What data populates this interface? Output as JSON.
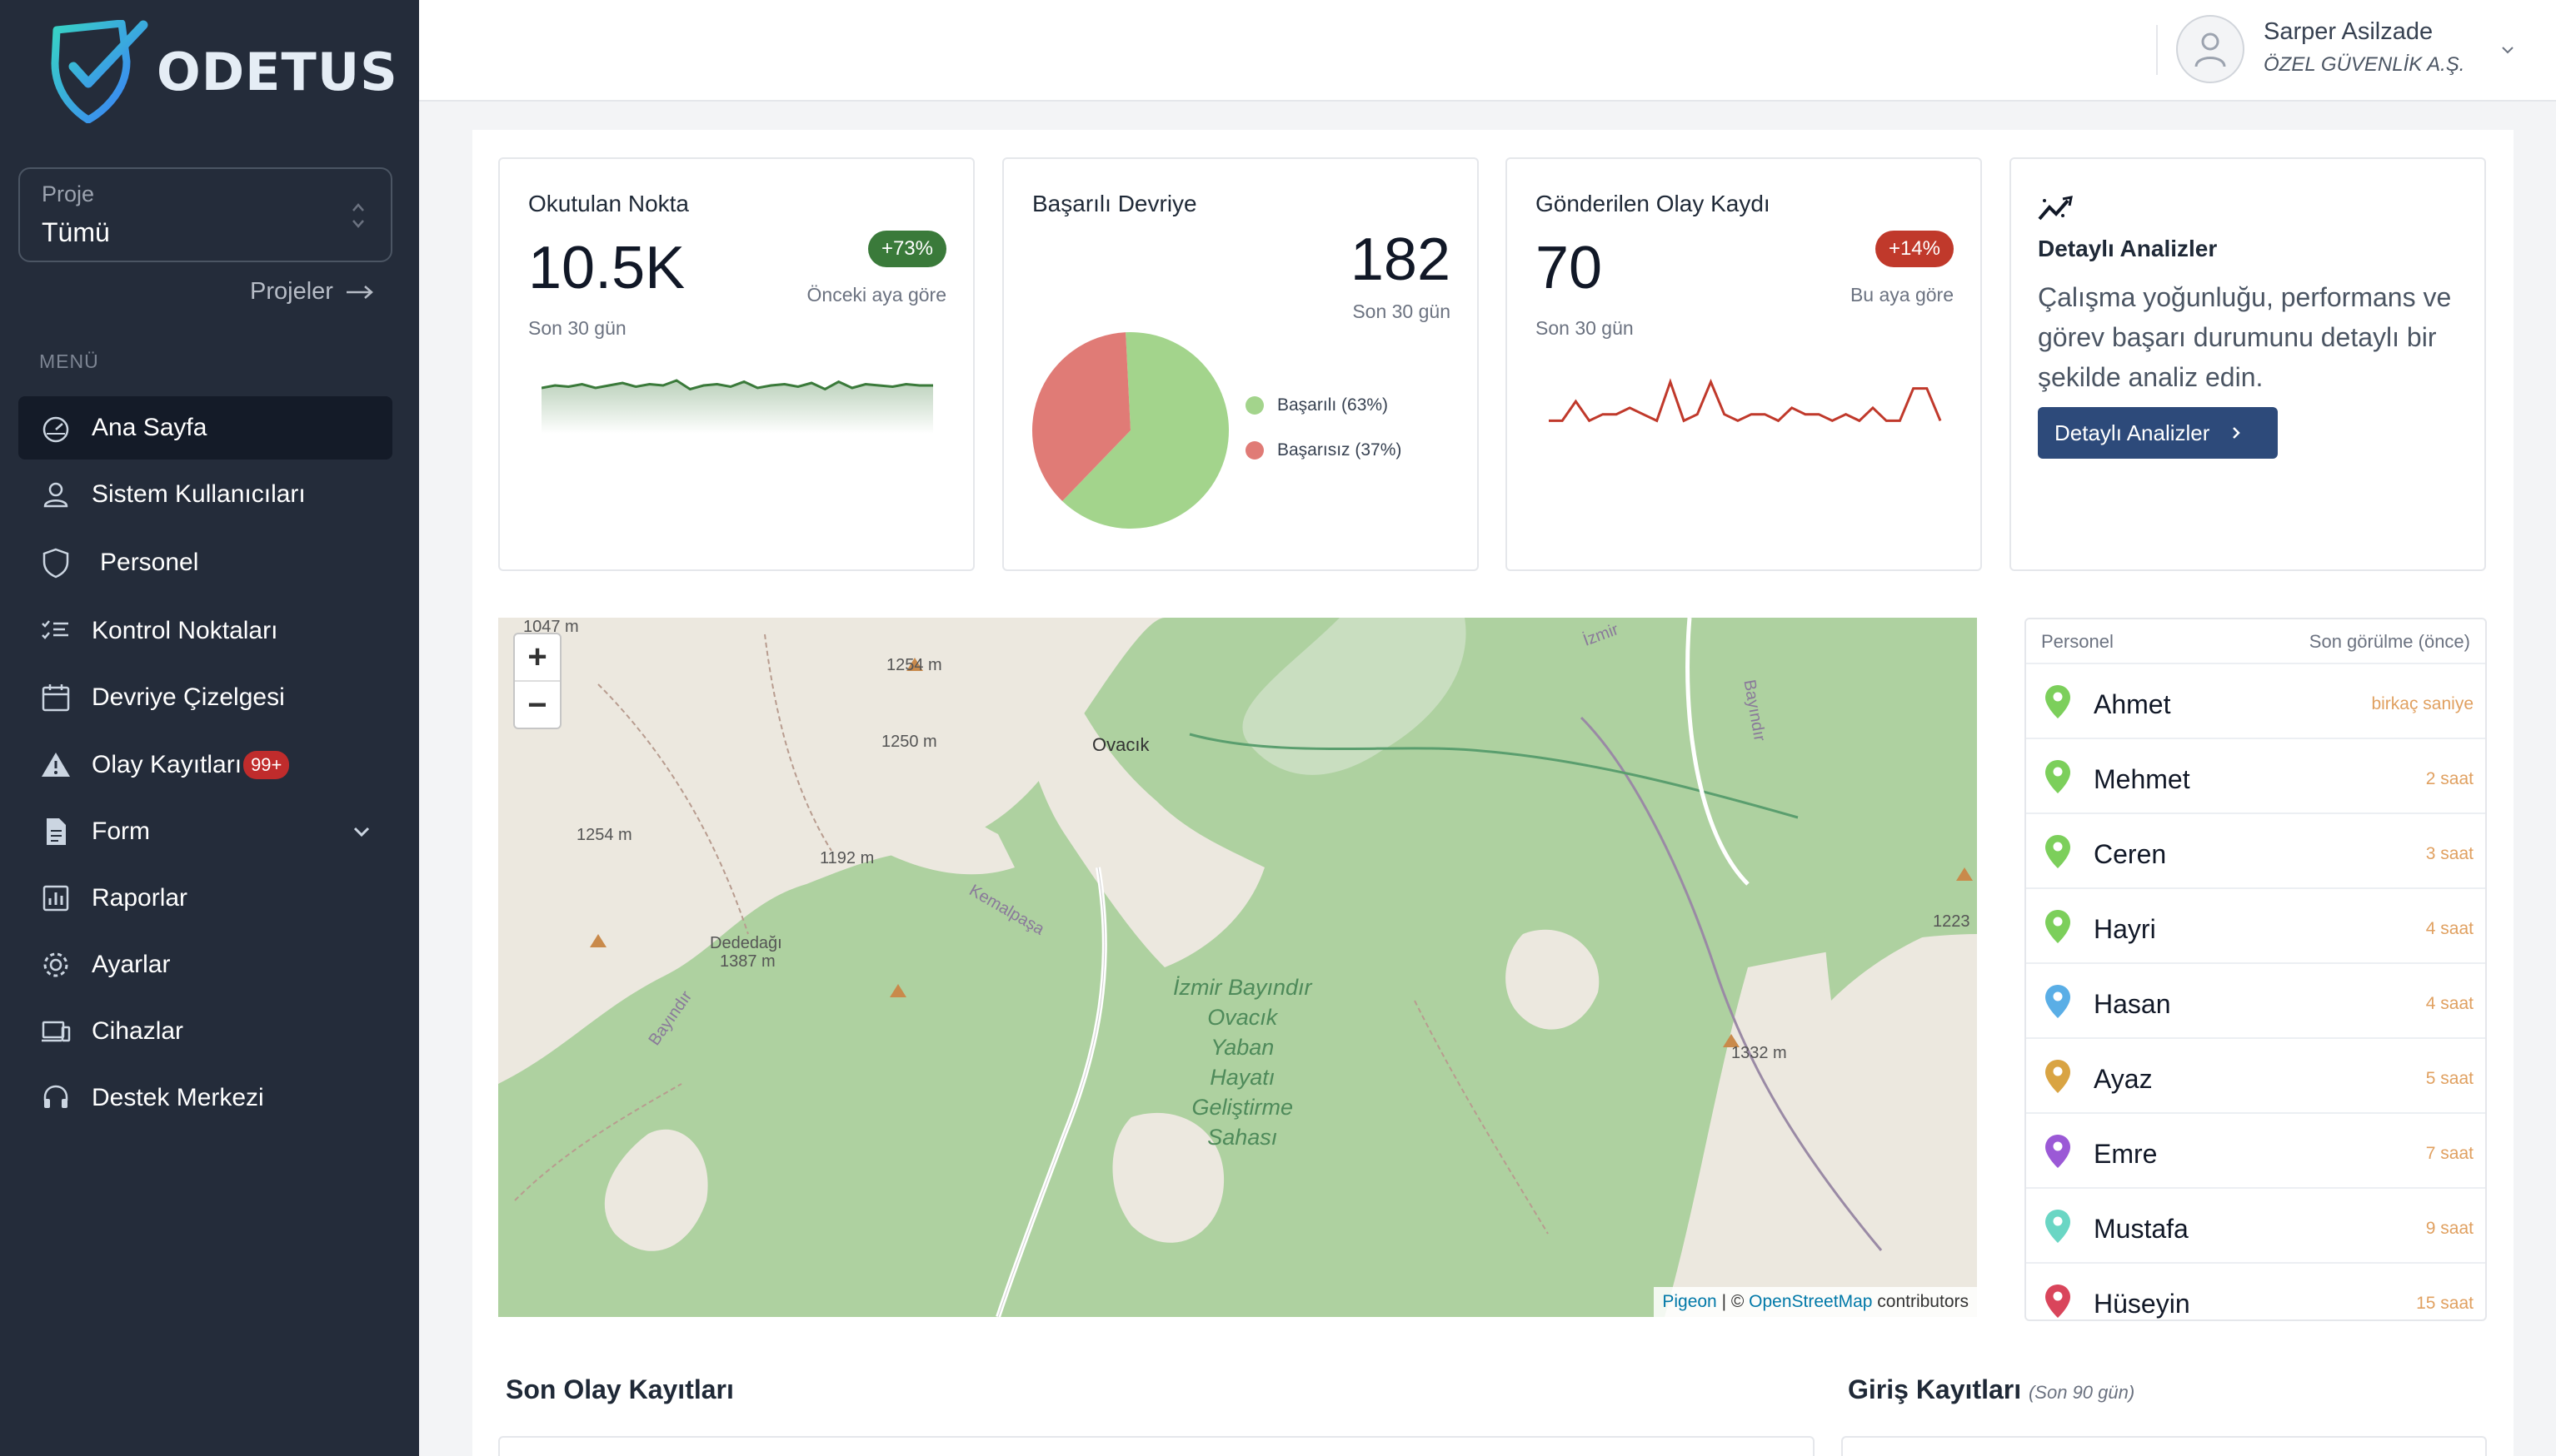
{
  "brand": {
    "name": "ODETUS"
  },
  "sidebar": {
    "project_label": "Proje",
    "project_value": "Tümü",
    "projects_link": "Projeler",
    "menu_heading": "MENÜ",
    "items": [
      {
        "label": "Ana Sayfa",
        "icon": "dashboard-icon",
        "active": true
      },
      {
        "label": "Sistem Kullanıcıları",
        "icon": "user-icon"
      },
      {
        "label": "Personel",
        "icon": "shield-icon"
      },
      {
        "label": "Kontrol Noktaları",
        "icon": "checklist-icon"
      },
      {
        "label": "Devriye Çizelgesi",
        "icon": "calendar-icon"
      },
      {
        "label": "Olay Kayıtları",
        "icon": "warning-icon",
        "badge": "99+"
      },
      {
        "label": "Form",
        "icon": "document-icon",
        "has_children": true
      },
      {
        "label": "Raporlar",
        "icon": "report-icon"
      },
      {
        "label": "Ayarlar",
        "icon": "gear-icon"
      },
      {
        "label": "Cihazlar",
        "icon": "devices-icon"
      },
      {
        "label": "Destek Merkezi",
        "icon": "headset-icon"
      }
    ]
  },
  "header": {
    "user_name": "Sarper Asilzade",
    "company": "ÖZEL GÜVENLİK A.Ş."
  },
  "cards": {
    "scanned": {
      "title": "Okutulan Nokta",
      "value": "10.5K",
      "period": "Son 30 gün",
      "change": "+73%",
      "change_note": "Önceki aya göre",
      "color": "#3a7a3a"
    },
    "patrol": {
      "title": "Başarılı Devriye",
      "value": "182",
      "period": "Son 30 gün",
      "legend_success": "Başarılı (63%)",
      "legend_fail": "Başarısız (37%)",
      "success_color": "#a3d48c",
      "fail_color": "#e07b76"
    },
    "incidents": {
      "title": "Gönderilen Olay Kaydı",
      "value": "70",
      "period": "Son 30 gün",
      "change": "+14%",
      "change_note": "Bu aya göre",
      "color": "#c0392b"
    },
    "analytics": {
      "title": "Detaylı Analizler",
      "description": "Çalışma yoğunluğu, performans ve görev başarı durumunu detaylı bir şekilde analiz edin.",
      "button": "Detaylı Analizler"
    }
  },
  "chart_data": [
    {
      "type": "area",
      "title": "Okutulan Nokta",
      "values": [
        10,
        12,
        11,
        13,
        10,
        12,
        14,
        11,
        13,
        12,
        16,
        9,
        12,
        13,
        11,
        15,
        10,
        12,
        13,
        11,
        14,
        9,
        15,
        10,
        13,
        12,
        11,
        13,
        12,
        12
      ]
    },
    {
      "type": "pie",
      "title": "Başarılı Devriye",
      "categories": [
        "Başarılı",
        "Başarısız"
      ],
      "values": [
        63,
        37
      ]
    },
    {
      "type": "line",
      "title": "Gönderilen Olay Kaydı",
      "values": [
        2,
        2,
        5,
        2,
        3,
        3,
        4,
        3,
        2,
        8,
        2,
        3,
        8,
        3,
        2,
        3,
        3,
        2,
        4,
        3,
        3,
        2,
        3,
        2,
        4,
        2,
        2,
        7,
        7,
        2
      ]
    }
  ],
  "map": {
    "attribution_pigeon": "Pigeon",
    "attribution_sep": " | © ",
    "attribution_osm": "OpenStreetMap",
    "attribution_tail": " contributors",
    "area_label_lines": [
      "İzmir Bayındır",
      "Ovacık",
      "Yaban",
      "Hayatı",
      "Geliştirme",
      "Sahası"
    ],
    "labels": [
      "1047 m",
      "1254 m",
      "1250 m",
      "Ovacık",
      "1254 m",
      "1192 m",
      "Dededağı",
      "1387 m",
      "Kemalpaşa",
      "Bayındır",
      "1332 m",
      "1223",
      "İzmir",
      "Bayındır"
    ]
  },
  "personnel": {
    "header_name": "Personel",
    "header_time": "Son görülme (önce)",
    "rows": [
      {
        "name": "Ahmet",
        "time": "birkaç saniye",
        "color": "#7ccf5b"
      },
      {
        "name": "Mehmet",
        "time": "2 saat",
        "color": "#7ccf5b"
      },
      {
        "name": "Ceren",
        "time": "3 saat",
        "color": "#7ccf5b"
      },
      {
        "name": "Hayri",
        "time": "4 saat",
        "color": "#7ccf5b"
      },
      {
        "name": "Hasan",
        "time": "4 saat",
        "color": "#5aaee6"
      },
      {
        "name": "Ayaz",
        "time": "5 saat",
        "color": "#d9a443"
      },
      {
        "name": "Emre",
        "time": "7 saat",
        "color": "#9b59d6"
      },
      {
        "name": "Mustafa",
        "time": "9 saat",
        "color": "#6ad6c4"
      },
      {
        "name": "Hüseyin",
        "time": "15 saat",
        "color": "#d9455b"
      }
    ]
  },
  "sections": {
    "incidents_title": "Son Olay Kayıtları",
    "logins_title": "Giriş Kayıtları",
    "logins_sub": "(Son 90 gün)"
  }
}
